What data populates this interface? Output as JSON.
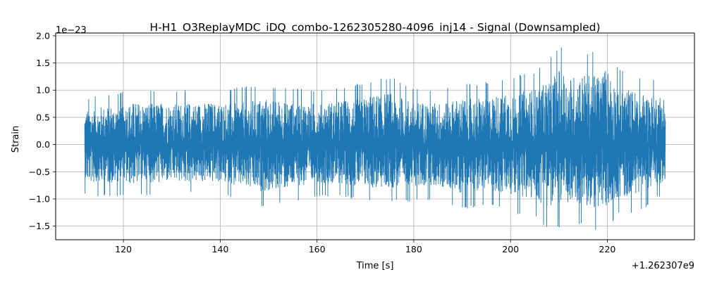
{
  "chart_data": {
    "type": "line",
    "title": "H-H1_O3ReplayMDC_iDQ_combo-1262305280-4096_inj14 - Signal (Downsampled)",
    "xlabel": "Time [s]",
    "ylabel": "Strain",
    "y_scale_label": "1e−23",
    "x_offset_label": "+1.262307e9",
    "xlim": [
      106,
      238
    ],
    "ylim": [
      -1.75,
      2.05
    ],
    "grid": true,
    "x_ticks": [
      {
        "value": 120,
        "label": "120"
      },
      {
        "value": 140,
        "label": "140"
      },
      {
        "value": 160,
        "label": "160"
      },
      {
        "value": 180,
        "label": "180"
      },
      {
        "value": 200,
        "label": "200"
      },
      {
        "value": 220,
        "label": "220"
      }
    ],
    "y_ticks": [
      {
        "value": 2.0,
        "label": "2.0"
      },
      {
        "value": 1.5,
        "label": "1.5"
      },
      {
        "value": 1.0,
        "label": "1.0"
      },
      {
        "value": 0.5,
        "label": "0.5"
      },
      {
        "value": 0.0,
        "label": "0.0"
      },
      {
        "value": -0.5,
        "label": "−0.5"
      },
      {
        "value": -1.0,
        "label": "−1.0"
      },
      {
        "value": -1.5,
        "label": "−1.5"
      }
    ],
    "series": [
      {
        "color": "#1f77b4",
        "x_start": 112,
        "x_end": 232,
        "envelope_t": [
          112,
          115,
          118,
          122,
          130,
          140,
          148,
          155,
          160,
          165,
          170,
          175,
          180,
          185,
          190,
          195,
          200,
          205,
          208,
          210,
          212,
          215,
          218,
          220,
          222,
          225,
          228,
          230,
          232
        ],
        "envelope_upper": [
          0.85,
          0.9,
          0.95,
          1.0,
          1.0,
          1.0,
          1.1,
          1.05,
          1.0,
          1.05,
          1.15,
          1.25,
          1.05,
          1.0,
          1.1,
          1.15,
          1.25,
          1.35,
          1.55,
          1.85,
          1.6,
          1.7,
          1.7,
          1.85,
          1.45,
          1.3,
          1.2,
          1.2,
          1.2
        ],
        "envelope_lower": [
          -0.9,
          -0.95,
          -0.95,
          -0.95,
          -0.9,
          -0.9,
          -1.15,
          -1.05,
          -0.95,
          -0.95,
          -1.05,
          -1.05,
          -1.05,
          -1.0,
          -1.2,
          -1.1,
          -1.25,
          -1.35,
          -1.55,
          -1.55,
          -1.45,
          -1.5,
          -1.6,
          -1.55,
          -1.3,
          -1.25,
          -1.15,
          -1.0,
          -0.9
        ]
      }
    ]
  }
}
